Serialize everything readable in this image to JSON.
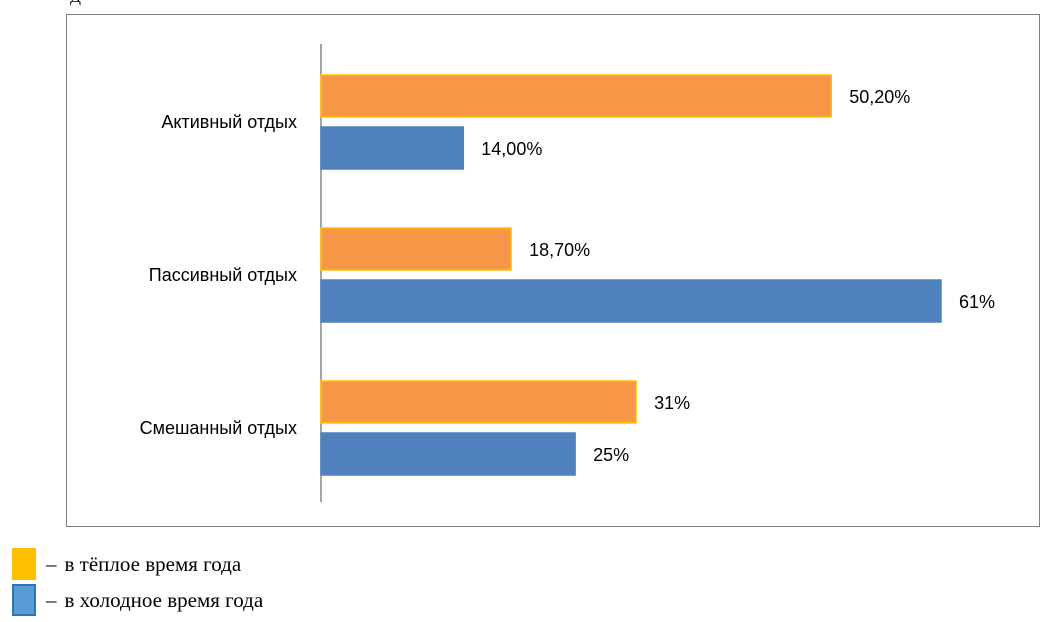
{
  "page_top_text": "Д",
  "chart_data": {
    "type": "bar",
    "orientation": "horizontal",
    "categories": [
      "Активный отдых",
      "Пассивный отдых",
      "Смешанный отдых"
    ],
    "series": [
      {
        "name": "в тёплое время года",
        "values": [
          50.2,
          18.7,
          31
        ],
        "labels": [
          "50,20%",
          "18,70%",
          "31%"
        ],
        "color": "#f79646",
        "border": "#ffc000"
      },
      {
        "name": "в холодное время года",
        "values": [
          14,
          61,
          25
        ],
        "labels": [
          "14,00%",
          "61%",
          "25%"
        ],
        "color": "#4f81bd",
        "border": "#4f81bd"
      }
    ],
    "xlim": [
      0,
      61
    ],
    "grid": false,
    "legend_position": "bottom-left, outside chart"
  },
  "legend": {
    "items": [
      {
        "label": "в тёплое время года",
        "color": "#ffc000",
        "border": "#ffc000"
      },
      {
        "label": "в холодное время года",
        "color": "#5b9bd5",
        "border": "#2e75b6"
      }
    ],
    "dash": "–"
  }
}
